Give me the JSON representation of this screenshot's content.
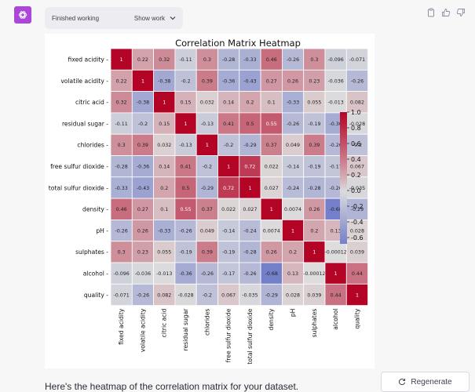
{
  "status": {
    "label": "Finished working",
    "toggle_label": "Show work"
  },
  "icons": {
    "avatar": "openai-logo-icon",
    "copy": "clipboard-icon",
    "up": "thumbs-up-icon",
    "down": "thumbs-down-icon",
    "regenerate": "refresh-icon"
  },
  "colors": {
    "avatar": "#ab47d6"
  },
  "caption": "Here's the heatmap of the correlation matrix for your dataset.",
  "regenerate_label": "Regenerate",
  "chart_data": {
    "type": "heatmap",
    "title": "Correlation Matrix Heatmap",
    "labels": [
      "fixed acidity",
      "volatile acidity",
      "citric acid",
      "residual sugar",
      "chlorides",
      "free sulfur dioxide",
      "total sulfur dioxide",
      "density",
      "pH",
      "sulphates",
      "alcohol",
      "quality"
    ],
    "values": [
      [
        1,
        0.22,
        0.32,
        -0.11,
        0.3,
        -0.28,
        -0.33,
        0.46,
        -0.26,
        0.3,
        -0.096,
        -0.071
      ],
      [
        0.22,
        1,
        -0.38,
        -0.2,
        0.39,
        -0.36,
        -0.43,
        0.27,
        0.26,
        0.23,
        -0.036,
        -0.26
      ],
      [
        0.32,
        -0.38,
        1,
        0.15,
        0.032,
        0.14,
        0.2,
        0.1,
        -0.33,
        0.055,
        -0.013,
        0.082
      ],
      [
        -0.11,
        -0.2,
        0.15,
        1,
        -0.13,
        0.41,
        0.5,
        0.55,
        -0.26,
        -0.19,
        -0.36,
        -0.028
      ],
      [
        0.3,
        0.39,
        0.032,
        -0.13,
        1,
        -0.2,
        -0.29,
        0.37,
        0.049,
        0.39,
        -0.26,
        -0.2
      ],
      [
        -0.28,
        -0.36,
        0.14,
        0.41,
        -0.2,
        1,
        0.72,
        0.022,
        -0.14,
        -0.19,
        -0.17,
        0.067
      ],
      [
        -0.33,
        -0.43,
        0.2,
        0.5,
        -0.29,
        0.72,
        1,
        0.027,
        -0.24,
        -0.28,
        -0.26,
        -0.035
      ],
      [
        0.46,
        0.27,
        0.1,
        0.55,
        0.37,
        0.022,
        0.027,
        1,
        0.0074,
        0.26,
        -0.68,
        -0.29
      ],
      [
        -0.26,
        0.26,
        -0.33,
        -0.26,
        0.049,
        -0.14,
        -0.24,
        0.0074,
        1,
        0.2,
        0.13,
        0.028
      ],
      [
        0.3,
        0.23,
        0.055,
        -0.19,
        0.39,
        -0.19,
        -0.28,
        0.26,
        0.2,
        1,
        -0.00012,
        0.039
      ],
      [
        -0.096,
        -0.036,
        -0.013,
        -0.36,
        -0.26,
        -0.17,
        -0.26,
        -0.68,
        0.13,
        -0.00012,
        1,
        0.44
      ],
      [
        -0.071,
        -0.26,
        0.082,
        -0.028,
        -0.2,
        0.067,
        -0.035,
        -0.29,
        0.028,
        0.039,
        0.44,
        1
      ]
    ],
    "cell_labels": [
      [
        "1",
        "0.22",
        "0.32",
        "-0.11",
        "0.3",
        "-0.28",
        "-0.33",
        "0.46",
        "-0.26",
        "0.3",
        "-0.096",
        "-0.071"
      ],
      [
        "0.22",
        "1",
        "-0.38",
        "-0.2",
        "0.39",
        "-0.36",
        "-0.43",
        "0.27",
        "0.26",
        "0.23",
        "-0.036",
        "-0.26"
      ],
      [
        "0.32",
        "-0.38",
        "1",
        "0.15",
        "0.032",
        "0.14",
        "0.2",
        "0.1",
        "-0.33",
        "0.055",
        "-0.013",
        "0.082"
      ],
      [
        "-0.11",
        "-0.2",
        "0.15",
        "1",
        "-0.13",
        "0.41",
        "0.5",
        "0.55",
        "-0.26",
        "-0.19",
        "-0.36",
        "-0.028"
      ],
      [
        "0.3",
        "0.39",
        "0.032",
        "-0.13",
        "1",
        "-0.2",
        "-0.29",
        "0.37",
        "0.049",
        "0.39",
        "-0.26",
        "-0.2"
      ],
      [
        "-0.28",
        "-0.36",
        "0.14",
        "0.41",
        "-0.2",
        "1",
        "0.72",
        "0.022",
        "-0.14",
        "-0.19",
        "-0.17",
        "0.067"
      ],
      [
        "-0.33",
        "-0.43",
        "0.2",
        "0.5",
        "-0.29",
        "0.72",
        "1",
        "0.027",
        "-0.24",
        "-0.28",
        "-0.26",
        "-0.035"
      ],
      [
        "0.46",
        "0.27",
        "0.1",
        "0.55",
        "0.37",
        "0.022",
        "0.027",
        "1",
        "0.0074",
        "0.26",
        "-0.68",
        "-0.29"
      ],
      [
        "-0.26",
        "0.26",
        "-0.33",
        "-0.26",
        "0.049",
        "-0.14",
        "-0.24",
        "0.0074",
        "1",
        "0.2",
        "0.13",
        "0.028"
      ],
      [
        "0.3",
        "0.23",
        "0.055",
        "-0.19",
        "0.39",
        "-0.19",
        "-0.28",
        "0.26",
        "0.2",
        "1",
        "-0.00012",
        "0.039"
      ],
      [
        "-0.096",
        "-0.036",
        "-0.013",
        "-0.36",
        "-0.26",
        "-0.17",
        "-0.26",
        "-0.68",
        "0.13",
        "-0.00012",
        "1",
        "0.44"
      ],
      [
        "-0.071",
        "-0.26",
        "0.082",
        "-0.028",
        "-0.2",
        "0.067",
        "-0.035",
        "-0.29",
        "0.028",
        "0.039",
        "0.44",
        "1"
      ]
    ],
    "colormap": "coolwarm",
    "vmin": -0.68,
    "vmax": 1,
    "colorbar_ticks": [
      "1.0",
      "0.8",
      "0.6",
      "0.4",
      "0.2",
      "0.0",
      "-0.2",
      "-0.4",
      "-0.6"
    ],
    "colorbar_tick_values": [
      1.0,
      0.8,
      0.6,
      0.4,
      0.2,
      0.0,
      -0.2,
      -0.4,
      -0.6
    ],
    "gridlines": true
  }
}
